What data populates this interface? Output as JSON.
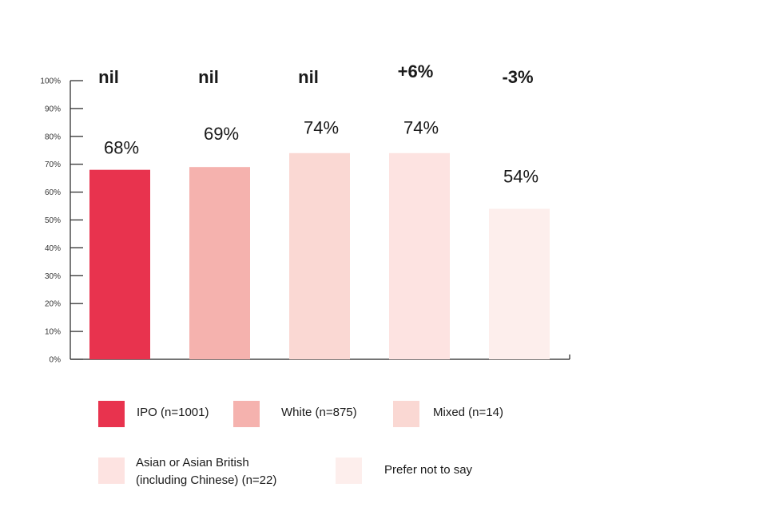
{
  "chart_data": {
    "type": "bar",
    "categories": [
      "IPO (n=1001)",
      "White (n=875)",
      "Mixed (n=14)",
      "Asian or Asian British (including Chinese) (n=22)",
      "Prefer not to say"
    ],
    "values": [
      68,
      69,
      74,
      74,
      54
    ],
    "value_labels": [
      "68%",
      "69%",
      "74%",
      "74%",
      "54%"
    ],
    "change_labels": [
      "nil",
      "nil",
      "nil",
      "+6%",
      "-3%"
    ],
    "colors": [
      "#e8334e",
      "#f5b2ae",
      "#fad8d3",
      "#fde3e1",
      "#fdeeec"
    ],
    "ylim": [
      0,
      100
    ],
    "yticks": [
      "0%",
      "10%",
      "20%",
      "30%",
      "40%",
      "50%",
      "60%",
      "70%",
      "80%",
      "90%",
      "100%"
    ],
    "legend": [
      {
        "lines": [
          "IPO (n=1001)"
        ]
      },
      {
        "lines": [
          "White  (n=875)"
        ]
      },
      {
        "lines": [
          "Mixed (n=14)"
        ]
      },
      {
        "lines": [
          "Asian or Asian British",
          "(including Chinese) (n=22)"
        ]
      },
      {
        "lines": [
          "Prefer not to say"
        ]
      }
    ],
    "legend_placement": "bottom",
    "grid": false
  }
}
